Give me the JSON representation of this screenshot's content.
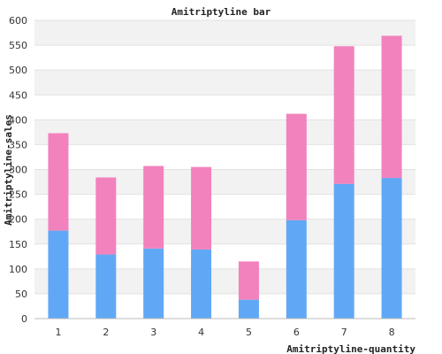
{
  "chart_data": {
    "type": "bar",
    "stacked": true,
    "title": "Amitriptyline bar",
    "xlabel": "Amitriptyline-quantity",
    "ylabel": "Amitriptyline-sales",
    "categories": [
      "1",
      "2",
      "3",
      "4",
      "5",
      "6",
      "7",
      "8"
    ],
    "series": [
      {
        "color": "#60a8f5",
        "values": [
          177,
          129,
          141,
          139,
          38,
          198,
          271,
          283
        ]
      },
      {
        "color": "#f282bd",
        "values": [
          196,
          155,
          166,
          166,
          77,
          214,
          277,
          286
        ]
      }
    ],
    "ylim": [
      0,
      600
    ],
    "yticks": [
      0,
      50,
      100,
      150,
      200,
      250,
      300,
      350,
      400,
      450,
      500,
      550,
      600
    ],
    "grid": true
  }
}
